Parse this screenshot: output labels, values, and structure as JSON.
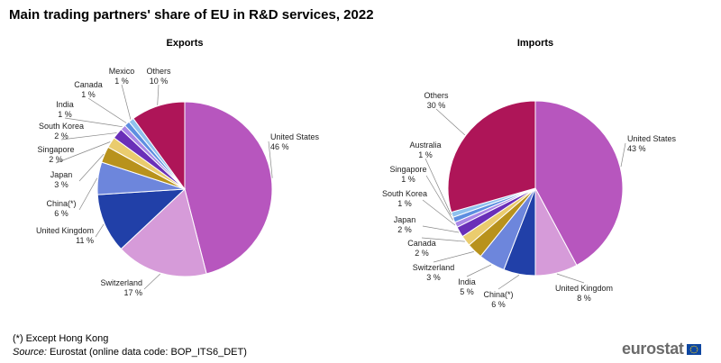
{
  "title": "Main trading partners' share of EU in R&D services, 2022",
  "chart_data": [
    {
      "type": "pie",
      "title": "Exports",
      "slices": [
        {
          "label": "United States",
          "value": 46,
          "display": "46 %",
          "color": "#b756be"
        },
        {
          "label": "Switzerland",
          "value": 17,
          "display": "17 %",
          "color": "#d69bd9"
        },
        {
          "label": "United Kingdom",
          "value": 11,
          "display": "11 %",
          "color": "#2140a8"
        },
        {
          "label": "China(*)",
          "value": 6,
          "display": "6 %",
          "color": "#6d86dc"
        },
        {
          "label": "Japan",
          "value": 3,
          "display": "3 %",
          "color": "#b8921c"
        },
        {
          "label": "Singapore",
          "value": 2,
          "display": "2 %",
          "color": "#eacc6e"
        },
        {
          "label": "South Korea",
          "value": 2,
          "display": "2 %",
          "color": "#6a2fb8"
        },
        {
          "label": "India",
          "value": 1,
          "display": "1 %",
          "color": "#a986e6"
        },
        {
          "label": "Canada",
          "value": 1,
          "display": "1 %",
          "color": "#5d8ee0"
        },
        {
          "label": "Mexico",
          "value": 1,
          "display": "1 %",
          "color": "#8fc1ee"
        },
        {
          "label": "Others",
          "value": 10,
          "display": "10 %",
          "color": "#ae1558"
        }
      ]
    },
    {
      "type": "pie",
      "title": "Imports",
      "slices": [
        {
          "label": "United States",
          "value": 43,
          "display": "43 %",
          "color": "#b756be"
        },
        {
          "label": "United Kingdom",
          "value": 8,
          "display": "8 %",
          "color": "#d69bd9"
        },
        {
          "label": "China(*)",
          "value": 6,
          "display": "6 %",
          "color": "#2140a8"
        },
        {
          "label": "India",
          "value": 5,
          "display": "5 %",
          "color": "#6d86dc"
        },
        {
          "label": "Switzerland",
          "value": 3,
          "display": "3 %",
          "color": "#b8921c"
        },
        {
          "label": "Canada",
          "value": 2,
          "display": "2 %",
          "color": "#eacc6e"
        },
        {
          "label": "Japan",
          "value": 2,
          "display": "2 %",
          "color": "#6a2fb8"
        },
        {
          "label": "South Korea",
          "value": 1,
          "display": "1 %",
          "color": "#a986e6"
        },
        {
          "label": "Singapore",
          "value": 1,
          "display": "1 %",
          "color": "#5d8ee0"
        },
        {
          "label": "Australia",
          "value": 1,
          "display": "1 %",
          "color": "#8fc1ee"
        },
        {
          "label": "Others",
          "value": 30,
          "display": "30 %",
          "color": "#ae1558"
        }
      ]
    }
  ],
  "footnote": "(*) Except Hong Kong",
  "source": {
    "key": "Source:",
    "text": " Eurostat (online data code: BOP_ITS6_DET)"
  },
  "logo_text": "eurostat"
}
